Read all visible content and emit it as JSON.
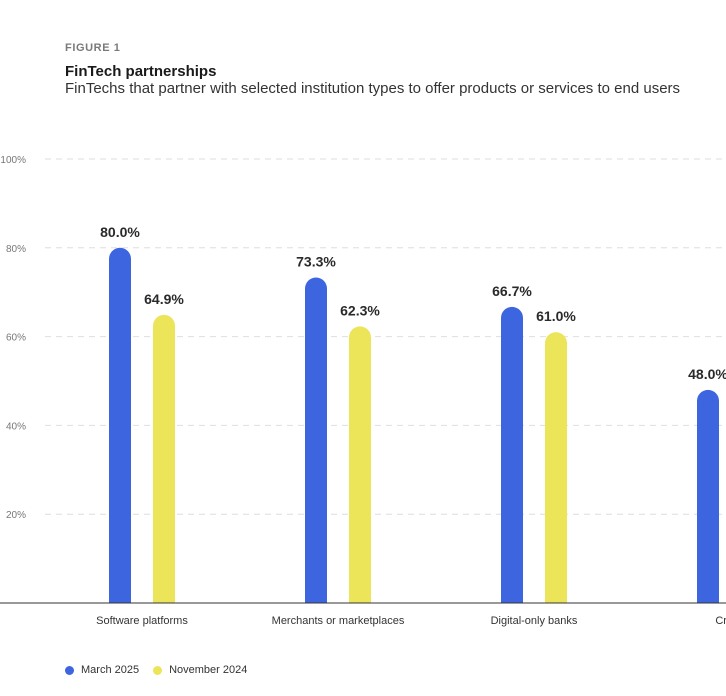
{
  "figure_label": "FIGURE 1",
  "chart_data": {
    "type": "bar",
    "title": "FinTech partnerships",
    "subtitle": "FinTechs that partner with selected institution types to offer products or services to end users",
    "categories": [
      "Software platforms",
      "Merchants or marketplaces",
      "Digital-only banks",
      "Credit"
    ],
    "series": [
      {
        "name": "March 2025",
        "color": "#3d65e0",
        "values": [
          80.0,
          73.3,
          66.7,
          48.0
        ],
        "labels": [
          "80.0%",
          "73.3%",
          "66.7%",
          "48.0%"
        ]
      },
      {
        "name": "November 2024",
        "color": "#ece55a",
        "values": [
          64.9,
          62.3,
          61.0,
          null
        ],
        "labels": [
          "64.9%",
          "62.3%",
          "61.0%",
          ""
        ]
      }
    ],
    "ylim": [
      0,
      100
    ],
    "yticks": [
      20,
      40,
      60,
      80,
      100
    ],
    "ytick_labels": [
      "20%",
      "40%",
      "60%",
      "80%",
      "100%"
    ],
    "grid": true,
    "legend_position": "bottom-left"
  }
}
